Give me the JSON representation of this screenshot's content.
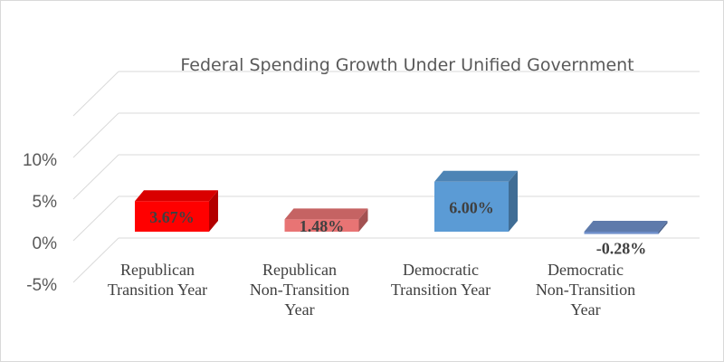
{
  "chart_data": {
    "type": "bar",
    "title": "Federal Spending Growth Under Unified Government",
    "categories": [
      [
        "Republican",
        "Transition Year"
      ],
      [
        "Republican",
        "Non-Transition",
        "Year"
      ],
      [
        "Democratic",
        "Transition Year"
      ],
      [
        "Democratic",
        "Non-Transition",
        "Year"
      ]
    ],
    "values": [
      3.67,
      1.48,
      6.0,
      -0.28
    ],
    "data_labels": [
      "3.67%",
      "1.48%",
      "6.00%",
      "-0.28%"
    ],
    "colors": [
      "#ff0000",
      "#e87474",
      "#5b9bd5",
      "#6f8fc9"
    ],
    "y_ticks": [
      "-5%",
      "0%",
      "5%",
      "10%"
    ],
    "ylim": [
      -5,
      10
    ],
    "grid": true,
    "three_d": true
  }
}
